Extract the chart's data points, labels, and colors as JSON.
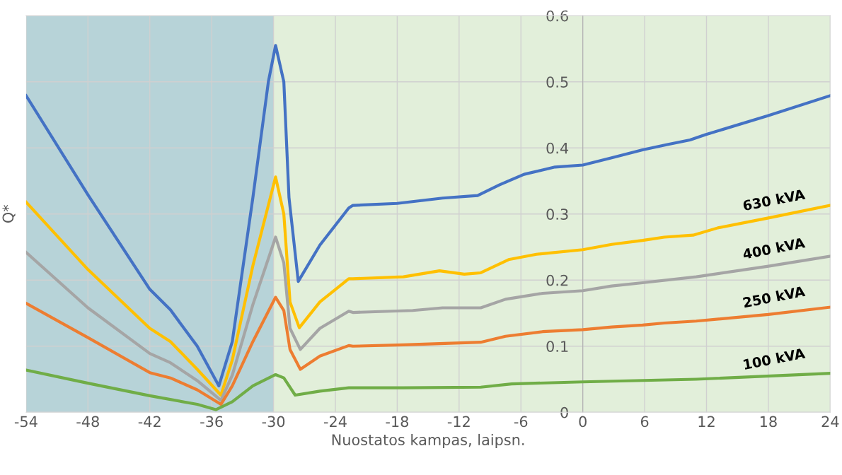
{
  "chart_data": {
    "type": "line",
    "xlabel": "Nuostatos kampas, laipsn.",
    "ylabel": "Q*",
    "xlim": [
      -54,
      24
    ],
    "xticks": [
      -54,
      -48,
      -42,
      -36,
      -30,
      -24,
      -18,
      -12,
      -6,
      0,
      6,
      12,
      18,
      24
    ],
    "ylim": [
      0,
      0.6
    ],
    "yticks": [
      0,
      0.1,
      0.2,
      0.3,
      0.4,
      0.5,
      0.6
    ],
    "grid": true,
    "legend": false,
    "bands": [
      {
        "axis": "x",
        "from": -54,
        "to": -30,
        "color": "#b7d3d8"
      },
      {
        "axis": "x",
        "from": -30,
        "to": 24,
        "color": "#e2efda"
      }
    ],
    "series": [
      {
        "color": "#4472c4",
        "x": [
          -54,
          -48,
          -42,
          -40,
          -37.4,
          -35.3,
          -34,
          -32,
          -30.5,
          -29.8,
          -29.0,
          -28.5,
          -27.6,
          -25.5,
          -22.7,
          -22.3,
          -18,
          -13.6,
          -10.2,
          -8.1,
          -5.7,
          -2.7,
          0,
          2.8,
          5.8,
          8.2,
          10.4,
          11.9,
          18,
          24
        ],
        "values": [
          0.479,
          0.329,
          0.186,
          0.155,
          0.1,
          0.04,
          0.107,
          0.325,
          0.5,
          0.555,
          0.5,
          0.325,
          0.198,
          0.253,
          0.309,
          0.313,
          0.316,
          0.324,
          0.328,
          0.344,
          0.36,
          0.371,
          0.374,
          0.385,
          0.397,
          0.405,
          0.412,
          0.42,
          0.449,
          0.479
        ]
      },
      {
        "name": "630 kVA",
        "color": "#ffc000",
        "x": [
          -54,
          -48,
          -42,
          -40,
          -37.4,
          -35.1,
          -34,
          -32,
          -29.8,
          -29.0,
          -28.4,
          -27.5,
          -25.5,
          -22.7,
          -22.3,
          -17.4,
          -13.9,
          -11.5,
          -9.9,
          -7.2,
          -4.5,
          0,
          2.8,
          5.8,
          7.9,
          10.7,
          13.1,
          18,
          24
        ],
        "values": [
          0.318,
          0.216,
          0.127,
          0.107,
          0.065,
          0.026,
          0.079,
          0.222,
          0.356,
          0.3,
          0.167,
          0.128,
          0.167,
          0.202,
          0.202,
          0.205,
          0.214,
          0.209,
          0.211,
          0.231,
          0.239,
          0.246,
          0.254,
          0.26,
          0.265,
          0.268,
          0.279,
          0.294,
          0.313
        ]
      },
      {
        "name": "400 kVA",
        "color": "#a5a5a5",
        "x": [
          -54,
          -48,
          -42,
          -40,
          -37.4,
          -35.1,
          -34,
          -32,
          -29.8,
          -29.0,
          -28.4,
          -27.4,
          -25.5,
          -22.7,
          -22.3,
          -16.5,
          -13.6,
          -9.9,
          -7.5,
          -3.9,
          0,
          2.8,
          5.8,
          11.0,
          18,
          24
        ],
        "values": [
          0.242,
          0.158,
          0.089,
          0.075,
          0.048,
          0.018,
          0.056,
          0.163,
          0.265,
          0.226,
          0.127,
          0.095,
          0.127,
          0.153,
          0.151,
          0.154,
          0.158,
          0.158,
          0.171,
          0.18,
          0.184,
          0.191,
          0.196,
          0.205,
          0.221,
          0.236
        ]
      },
      {
        "name": "250 kVA",
        "color": "#ed7d31",
        "x": [
          -54,
          -48,
          -42,
          -40,
          -37.4,
          -35.1,
          -34,
          -32,
          -29.8,
          -29.0,
          -28.4,
          -27.4,
          -25.5,
          -22.7,
          -22.3,
          -17.4,
          -9.9,
          -7.5,
          -3.9,
          0,
          2.8,
          5.8,
          7.9,
          11.0,
          18,
          24
        ],
        "values": [
          0.165,
          0.113,
          0.06,
          0.052,
          0.034,
          0.012,
          0.04,
          0.107,
          0.174,
          0.154,
          0.095,
          0.065,
          0.085,
          0.101,
          0.1,
          0.102,
          0.106,
          0.115,
          0.122,
          0.125,
          0.129,
          0.132,
          0.135,
          0.138,
          0.148,
          0.159
        ]
      },
      {
        "name": "100 kVA",
        "color": "#70ad47",
        "x": [
          -54,
          -48,
          -42,
          -37.4,
          -35.6,
          -34,
          -32,
          -29.8,
          -29.0,
          -27.9,
          -25.5,
          -22.7,
          -17.4,
          -9.9,
          -6.9,
          0,
          11.0,
          24
        ],
        "values": [
          0.064,
          0.044,
          0.025,
          0.012,
          0.004,
          0.016,
          0.04,
          0.057,
          0.052,
          0.026,
          0.032,
          0.037,
          0.037,
          0.038,
          0.043,
          0.046,
          0.05,
          0.059
        ]
      }
    ]
  }
}
